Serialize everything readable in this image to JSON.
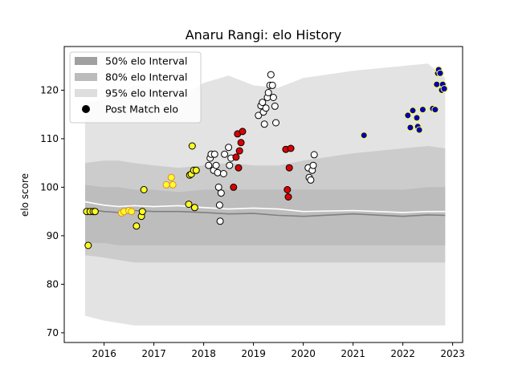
{
  "chart_data": {
    "type": "scatter",
    "title": "Anaru Rangi: elo History",
    "xlabel": "",
    "ylabel": "elo score",
    "xlim": [
      2015.2,
      2023.2
    ],
    "ylim": [
      68,
      129
    ],
    "x_ticks": [
      2016,
      2017,
      2018,
      2019,
      2020,
      2021,
      2022,
      2023
    ],
    "y_ticks": [
      70,
      80,
      90,
      100,
      110,
      120
    ],
    "grid": false,
    "legend_position": "top-left",
    "legend": [
      {
        "label": "50% elo Interval",
        "kind": "band",
        "color": "#a0a0a0"
      },
      {
        "label": "80% elo Interval",
        "kind": "band",
        "color": "#bcbcbc"
      },
      {
        "label": "95% elo Interval",
        "kind": "band",
        "color": "#dedede"
      },
      {
        "label": "Post Match elo",
        "kind": "marker",
        "color": "#000000"
      }
    ],
    "colors": {
      "band95": "#e3e3e3",
      "band80": "#cccccc",
      "band50": "#bdbdbd",
      "median_line": "#808080",
      "mean_line": "#ffffff"
    },
    "bands": {
      "x": [
        2015.62,
        2016.0,
        2016.3,
        2016.6,
        2017.0,
        2017.5,
        2018.0,
        2018.5,
        2019.0,
        2019.5,
        2020.0,
        2021.0,
        2022.0,
        2022.5,
        2022.85
      ],
      "upper95": [
        117.5,
        118.0,
        119.0,
        121.0,
        120.5,
        118.5,
        121.5,
        123.0,
        121.0,
        120.5,
        122.5,
        124.0,
        125.0,
        125.5,
        122.5
      ],
      "lower95": [
        73.5,
        72.5,
        72.0,
        71.5,
        71.5,
        71.5,
        71.5,
        71.5,
        71.5,
        71.5,
        71.5,
        71.5,
        71.5,
        71.5,
        71.5
      ],
      "upper80": [
        105.0,
        105.5,
        105.5,
        105.0,
        104.5,
        104.0,
        104.5,
        105.0,
        104.5,
        104.5,
        105.5,
        107.0,
        108.0,
        108.5,
        108.0
      ],
      "lower80": [
        86.0,
        85.5,
        85.0,
        84.5,
        84.5,
        84.5,
        84.5,
        84.5,
        84.5,
        84.5,
        84.5,
        84.5,
        84.5,
        84.5,
        84.5
      ],
      "upper50": [
        100.5,
        100.0,
        100.0,
        99.5,
        99.5,
        99.0,
        99.5,
        99.5,
        99.5,
        99.5,
        99.5,
        99.5,
        99.5,
        100.0,
        100.0
      ],
      "lower50": [
        88.5,
        88.5,
        88.0,
        88.0,
        88.0,
        88.0,
        88.0,
        88.0,
        88.0,
        88.0,
        88.0,
        88.0,
        88.0,
        88.0,
        88.0
      ],
      "median": [
        95.5,
        95.0,
        94.8,
        95.2,
        95.0,
        95.0,
        94.8,
        94.5,
        94.6,
        94.2,
        94.0,
        94.5,
        94.0,
        94.3,
        94.2
      ],
      "mean": [
        97.0,
        96.3,
        96.0,
        96.2,
        96.0,
        96.2,
        95.8,
        95.5,
        95.7,
        95.5,
        95.0,
        95.2,
        94.8,
        95.0,
        95.0
      ]
    },
    "series": [
      {
        "fill": "#ffff22",
        "edge": "#000000",
        "points": [
          [
            2015.65,
            95.0
          ],
          [
            2015.68,
            88.0
          ],
          [
            2015.72,
            95.0
          ],
          [
            2015.78,
            95.0
          ],
          [
            2015.82,
            95.0
          ],
          [
            2016.65,
            92.0
          ],
          [
            2016.75,
            94.0
          ],
          [
            2016.77,
            95.0
          ],
          [
            2016.8,
            99.5
          ],
          [
            2017.7,
            96.5
          ],
          [
            2017.72,
            102.5
          ],
          [
            2017.75,
            102.7
          ],
          [
            2017.77,
            108.5
          ],
          [
            2017.8,
            103.5
          ],
          [
            2017.82,
            95.8
          ],
          [
            2017.85,
            103.5
          ]
        ]
      },
      {
        "fill": "#ffff22",
        "edge": "#e08a30",
        "points": [
          [
            2016.35,
            94.7
          ],
          [
            2016.4,
            95.0
          ],
          [
            2016.5,
            95.2
          ],
          [
            2016.55,
            95.0
          ],
          [
            2017.25,
            100.5
          ],
          [
            2017.35,
            102.0
          ],
          [
            2017.38,
            100.5
          ]
        ]
      },
      {
        "fill": "#ffffff",
        "edge": "#000000",
        "points": [
          [
            2018.1,
            104.5
          ],
          [
            2018.13,
            106.0
          ],
          [
            2018.15,
            106.8
          ],
          [
            2018.2,
            103.5
          ],
          [
            2018.22,
            106.8
          ],
          [
            2018.25,
            104.5
          ],
          [
            2018.28,
            103.0
          ],
          [
            2018.3,
            100.0
          ],
          [
            2018.32,
            96.3
          ],
          [
            2018.33,
            93.0
          ],
          [
            2018.35,
            98.8
          ],
          [
            2018.4,
            102.8
          ],
          [
            2018.42,
            106.8
          ],
          [
            2018.5,
            108.2
          ],
          [
            2018.52,
            104.5
          ],
          [
            2018.55,
            106.0
          ],
          [
            2019.1,
            114.8
          ],
          [
            2019.15,
            116.8
          ],
          [
            2019.18,
            117.5
          ],
          [
            2019.2,
            115.5
          ],
          [
            2019.22,
            113.0
          ],
          [
            2019.25,
            116.3
          ],
          [
            2019.28,
            118.5
          ],
          [
            2019.3,
            119.5
          ],
          [
            2019.33,
            121.0
          ],
          [
            2019.35,
            123.2
          ],
          [
            2019.38,
            121.0
          ],
          [
            2019.4,
            118.5
          ],
          [
            2019.43,
            116.7
          ],
          [
            2019.45,
            113.3
          ],
          [
            2020.1,
            104.0
          ],
          [
            2020.12,
            102.0
          ],
          [
            2020.15,
            101.5
          ],
          [
            2020.18,
            103.5
          ],
          [
            2020.2,
            104.5
          ],
          [
            2020.22,
            106.7
          ]
        ]
      },
      {
        "fill": "#dd0000",
        "edge": "#000000",
        "points": [
          [
            2018.6,
            100.0
          ],
          [
            2018.65,
            106.2
          ],
          [
            2018.68,
            111.0
          ],
          [
            2018.7,
            104.0
          ],
          [
            2018.72,
            107.5
          ],
          [
            2018.75,
            109.2
          ],
          [
            2018.78,
            111.5
          ],
          [
            2019.65,
            107.8
          ],
          [
            2019.68,
            99.5
          ],
          [
            2019.7,
            98.0
          ],
          [
            2019.72,
            104.0
          ],
          [
            2019.75,
            108.0
          ]
        ]
      },
      {
        "fill": "#0000aa",
        "edge": "#ffff44",
        "points": [
          [
            2021.22,
            110.7
          ],
          [
            2022.1,
            114.8
          ],
          [
            2022.15,
            112.3
          ],
          [
            2022.2,
            115.8
          ],
          [
            2022.28,
            114.3
          ],
          [
            2022.3,
            112.5
          ],
          [
            2022.33,
            111.8
          ],
          [
            2022.4,
            116.0
          ],
          [
            2022.6,
            116.2
          ],
          [
            2022.65,
            116.0
          ],
          [
            2022.68,
            121.2
          ],
          [
            2022.7,
            123.5
          ],
          [
            2022.72,
            124.2
          ],
          [
            2022.75,
            123.5
          ],
          [
            2022.78,
            120.0
          ],
          [
            2022.8,
            121.2
          ],
          [
            2022.83,
            120.3
          ]
        ]
      }
    ]
  }
}
